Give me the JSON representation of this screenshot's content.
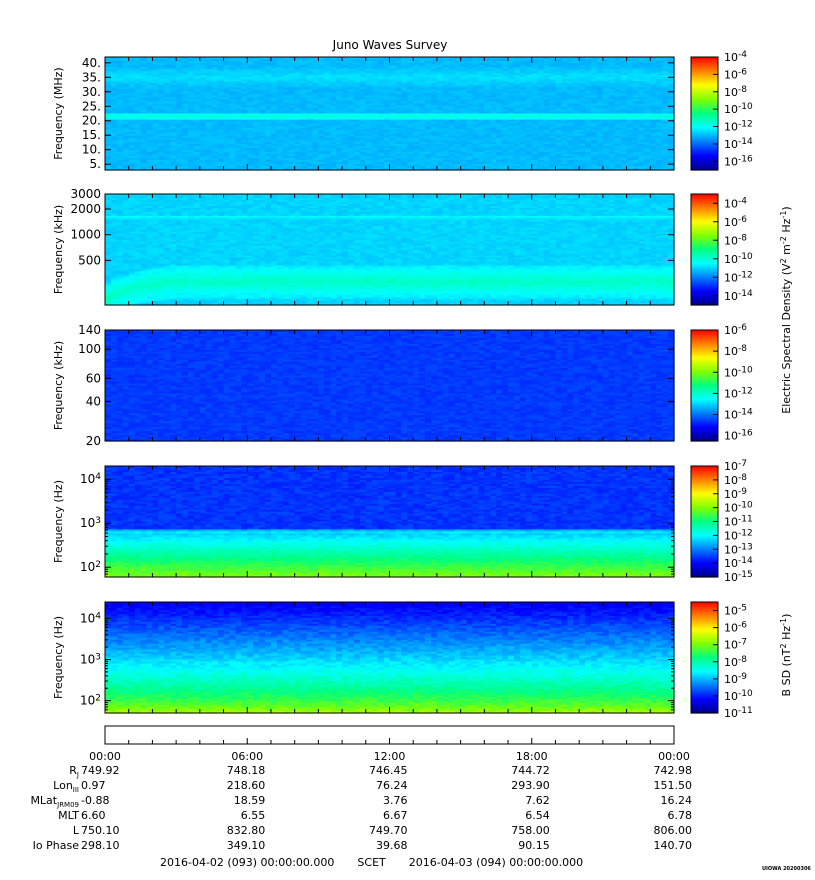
{
  "title": "Juno Waves Survey",
  "footer": {
    "start": "2016-04-02 (093) 00:00:00.000",
    "axis_label": "SCET",
    "end": "2016-04-03 (094) 00:00:00.000"
  },
  "stamp": "UIOWA 20200306",
  "colors": {
    "colormap": [
      "#00008f",
      "#0000ff",
      "#0080ff",
      "#00ffff",
      "#00ff80",
      "#80ff00",
      "#ffff00",
      "#ff8000",
      "#ff0000"
    ]
  },
  "chart_data": [
    {
      "type": "heatmap",
      "title": "",
      "ylabel": "Frequency (MHz)",
      "yscale": "linear",
      "ylim": [
        3,
        42
      ],
      "yticks": [
        5,
        10,
        15,
        20,
        25,
        30,
        35,
        40
      ],
      "ytick_labels": [
        "5.",
        "10.",
        "15.",
        "20.",
        "25.",
        "30.",
        "35.",
        "40."
      ],
      "colorbar": {
        "log_min": -17,
        "log_max": -4,
        "ticks": [
          {
            "base": "10",
            "exp": "-4",
            "v": -4
          },
          {
            "base": "10",
            "exp": "-6",
            "v": -6
          },
          {
            "base": "10",
            "exp": "-8",
            "v": -8
          },
          {
            "base": "10",
            "exp": "-10",
            "v": -10
          },
          {
            "base": "10",
            "exp": "-12",
            "v": -12
          },
          {
            "base": "10",
            "exp": "-14",
            "v": -14
          },
          {
            "base": "10",
            "exp": "-16",
            "v": -16
          }
        ]
      },
      "background_log": -13.0,
      "features": [
        {
          "kind": "band",
          "center": 21.5,
          "halfwidth": 1.2,
          "log": -11.6
        },
        {
          "kind": "band",
          "center": 35,
          "halfwidth": 6,
          "log": -12.5
        }
      ]
    },
    {
      "type": "heatmap",
      "title": "",
      "ylabel": "Frequency (kHz)",
      "yscale": "log",
      "ylim": [
        150,
        3000
      ],
      "yticks": [
        500,
        1000,
        2000,
        3000
      ],
      "ytick_labels": [
        "500",
        "1000",
        "2000",
        "3000"
      ],
      "colorbar": {
        "log_min": -15,
        "log_max": -3,
        "ticks": [
          {
            "base": "10",
            "exp": "-4",
            "v": -4
          },
          {
            "base": "10",
            "exp": "-6",
            "v": -6
          },
          {
            "base": "10",
            "exp": "-8",
            "v": -8
          },
          {
            "base": "10",
            "exp": "-10",
            "v": -10
          },
          {
            "base": "10",
            "exp": "-12",
            "v": -12
          },
          {
            "base": "10",
            "exp": "-14",
            "v": -14
          }
        ]
      },
      "background_log": -11.0,
      "features": [
        {
          "kind": "band",
          "center": 1600,
          "halfwidth": 120,
          "log": -10.4
        },
        {
          "kind": "rising-curve",
          "center_end": 280,
          "start_hours": 0,
          "log": -9.8
        }
      ]
    },
    {
      "type": "heatmap",
      "title": "",
      "ylabel": "Frequency (kHz)",
      "yscale": "log",
      "ylim": [
        20,
        140
      ],
      "yticks": [
        20,
        40,
        60,
        100,
        140
      ],
      "ytick_labels": [
        "20",
        "40",
        "60",
        "100",
        "140"
      ],
      "colorbar": {
        "log_min": -16.5,
        "log_max": -6,
        "ticks": [
          {
            "base": "10",
            "exp": "-6",
            "v": -6
          },
          {
            "base": "10",
            "exp": "-8",
            "v": -8
          },
          {
            "base": "10",
            "exp": "-10",
            "v": -10
          },
          {
            "base": "10",
            "exp": "-12",
            "v": -12
          },
          {
            "base": "10",
            "exp": "-14",
            "v": -14
          },
          {
            "base": "10",
            "exp": "-16",
            "v": -16
          }
        ]
      },
      "background_log": -14.6,
      "features": []
    },
    {
      "type": "heatmap",
      "title": "",
      "ylabel": "Frequency (Hz)",
      "yscale": "log",
      "ylim": [
        60,
        20000
      ],
      "yticks": [
        100,
        1000,
        10000
      ],
      "ytick_labels": [
        {
          "base": "10",
          "exp": "2"
        },
        {
          "base": "10",
          "exp": "3"
        },
        {
          "base": "10",
          "exp": "4"
        }
      ],
      "colorbar": {
        "log_min": -15,
        "log_max": -7,
        "ticks": [
          {
            "base": "10",
            "exp": "-7",
            "v": -7
          },
          {
            "base": "10",
            "exp": "-8",
            "v": -8
          },
          {
            "base": "10",
            "exp": "-9",
            "v": -9
          },
          {
            "base": "10",
            "exp": "-10",
            "v": -10
          },
          {
            "base": "10",
            "exp": "-11",
            "v": -11
          },
          {
            "base": "10",
            "exp": "-12",
            "v": -12
          },
          {
            "base": "10",
            "exp": "-13",
            "v": -13
          },
          {
            "base": "10",
            "exp": "-14",
            "v": -14
          },
          {
            "base": "10",
            "exp": "-15",
            "v": -15
          }
        ]
      },
      "background_log": -13.6,
      "features": [
        {
          "kind": "lowfreq-gradient",
          "top": 700,
          "log_low": -11.3
        },
        {
          "kind": "band",
          "center": 600,
          "halfwidth": 40,
          "log": -11.8
        }
      ]
    },
    {
      "type": "heatmap",
      "title": "",
      "ylabel": "Frequency (Hz)",
      "yscale": "log",
      "ylim": [
        50,
        25000
      ],
      "yticks": [
        100,
        1000,
        10000
      ],
      "ytick_labels": [
        {
          "base": "10",
          "exp": "2"
        },
        {
          "base": "10",
          "exp": "3"
        },
        {
          "base": "10",
          "exp": "4"
        }
      ],
      "colorbar": {
        "log_min": -11,
        "log_max": -4.5,
        "ticks": [
          {
            "base": "10",
            "exp": "-5",
            "v": -5
          },
          {
            "base": "10",
            "exp": "-6",
            "v": -6
          },
          {
            "base": "10",
            "exp": "-7",
            "v": -7
          },
          {
            "base": "10",
            "exp": "-8",
            "v": -8
          },
          {
            "base": "10",
            "exp": "-9",
            "v": -9
          },
          {
            "base": "10",
            "exp": "-10",
            "v": -10
          },
          {
            "base": "10",
            "exp": "-11",
            "v": -11
          }
        ]
      },
      "background_log": -10.2,
      "features": [
        {
          "kind": "spectrum-fall",
          "log_at_top": -10.3,
          "log_at_bottom": -6.6
        }
      ]
    }
  ],
  "colorbar_labels": {
    "electric": {
      "prefix": "Electric Spectral Density (V",
      "sup1": "2",
      "mid": " m",
      "sup2": "-2",
      "mid2": " Hz",
      "sup3": "-1",
      "suffix": ")"
    },
    "magnetic": {
      "prefix": "B SD (nT",
      "sup1": "2",
      "mid": " Hz",
      "sup2": "-1",
      "suffix": ")"
    }
  },
  "time_axis": {
    "xlim_hours": [
      0,
      24
    ],
    "major_ticks_hours": [
      0,
      6,
      12,
      18,
      24
    ],
    "tick_labels": [
      "00:00",
      "06:00",
      "12:00",
      "18:00",
      "00:00"
    ]
  },
  "ephemeris": [
    {
      "label": "R",
      "sub": "J",
      "values": [
        "749.92",
        "748.18",
        "746.45",
        "744.72",
        "742.98"
      ]
    },
    {
      "label": "Lon",
      "sub": "III",
      "values": [
        "0.97",
        "218.60",
        "76.24",
        "293.90",
        "151.50"
      ]
    },
    {
      "label": "MLat",
      "sub": "JRM09",
      "values": [
        "-0.88",
        "18.59",
        "3.76",
        "7.62",
        "16.24"
      ]
    },
    {
      "label": "MLT",
      "sub": "",
      "values": [
        "6.60",
        "6.55",
        "6.67",
        "6.54",
        "6.78"
      ]
    },
    {
      "label": "L",
      "sub": "",
      "values": [
        "750.10",
        "832.80",
        "749.70",
        "758.00",
        "806.00"
      ]
    },
    {
      "label": "Io Phase",
      "sub": "",
      "values": [
        "298.10",
        "349.10",
        "39.68",
        "90.15",
        "140.70"
      ]
    }
  ]
}
